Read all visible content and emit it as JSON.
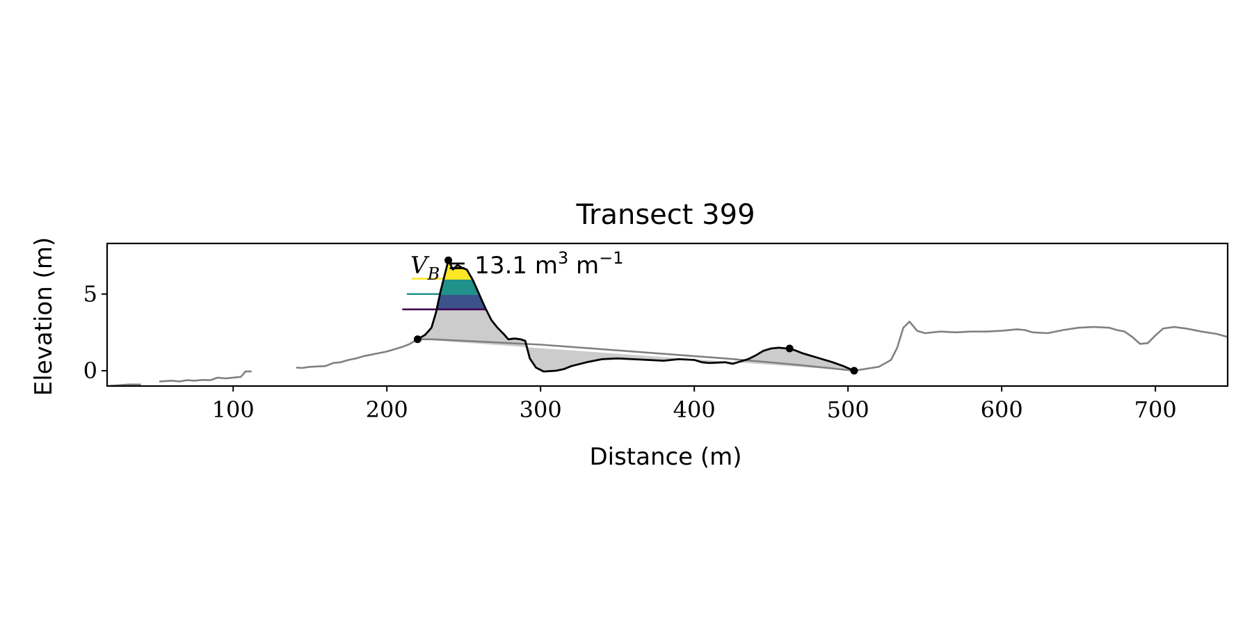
{
  "chart_data": {
    "type": "line",
    "title": "Transect 399",
    "xlabel": "Distance (m)",
    "ylabel": "Elevation (m)",
    "xlim": [
      18,
      747
    ],
    "ylim": [
      -1,
      8.3
    ],
    "xticks": [
      100,
      200,
      300,
      400,
      500,
      600,
      700
    ],
    "yticks": [
      0,
      5
    ],
    "grid": false,
    "legend": "none",
    "annotation": {
      "prefix": "V",
      "subscript": "B",
      "text": " = 13.1 m",
      "sup1": "3",
      "mid": " m",
      "sup2": "−1"
    },
    "colors": {
      "profile": "#808080",
      "dune": "#000000",
      "fill": "#cccccc",
      "band_low": "#440154",
      "band_mid": "#21918c",
      "band_high": "#fde725",
      "band_mid2": "#35b779",
      "band_low2": "#3b528b"
    },
    "series": [
      {
        "role": "profile",
        "segments": [
          [
            [
              18,
              -1.0
            ],
            [
              25,
              -0.95
            ],
            [
              32,
              -0.9
            ],
            [
              40,
              -0.9
            ]
          ],
          [
            [
              52,
              -0.7
            ],
            [
              60,
              -0.65
            ],
            [
              65,
              -0.7
            ],
            [
              70,
              -0.62
            ],
            [
              75,
              -0.65
            ],
            [
              80,
              -0.6
            ],
            [
              85,
              -0.62
            ],
            [
              90,
              -0.45
            ],
            [
              95,
              -0.5
            ],
            [
              100,
              -0.45
            ],
            [
              105,
              -0.4
            ],
            [
              108,
              -0.05
            ],
            [
              112,
              -0.05
            ]
          ],
          [
            [
              141,
              0.2
            ],
            [
              145,
              0.18
            ],
            [
              150,
              0.25
            ],
            [
              155,
              0.28
            ],
            [
              160,
              0.3
            ],
            [
              165,
              0.5
            ],
            [
              170,
              0.55
            ],
            [
              175,
              0.7
            ],
            [
              180,
              0.8
            ],
            [
              185,
              0.95
            ],
            [
              190,
              1.05
            ],
            [
              195,
              1.15
            ],
            [
              200,
              1.25
            ],
            [
              205,
              1.4
            ],
            [
              210,
              1.55
            ],
            [
              215,
              1.75
            ],
            [
              220,
              2.05
            ],
            [
              230,
              2.05
            ],
            [
              240,
              2.0
            ],
            [
              260,
              1.9
            ],
            [
              280,
              1.8
            ],
            [
              300,
              1.7
            ],
            [
              340,
              1.4
            ],
            [
              380,
              1.1
            ],
            [
              420,
              0.8
            ],
            [
              460,
              0.45
            ],
            [
              480,
              0.25
            ],
            [
              504,
              0.0
            ],
            [
              510,
              0.1
            ],
            [
              520,
              0.25
            ],
            [
              528,
              0.7
            ],
            [
              532,
              1.5
            ],
            [
              536,
              2.8
            ],
            [
              540,
              3.2
            ],
            [
              545,
              2.6
            ],
            [
              550,
              2.45
            ],
            [
              560,
              2.55
            ],
            [
              570,
              2.5
            ],
            [
              580,
              2.55
            ],
            [
              590,
              2.55
            ],
            [
              600,
              2.6
            ],
            [
              610,
              2.7
            ],
            [
              615,
              2.65
            ],
            [
              620,
              2.5
            ],
            [
              630,
              2.45
            ],
            [
              640,
              2.65
            ],
            [
              650,
              2.8
            ],
            [
              660,
              2.85
            ],
            [
              670,
              2.8
            ],
            [
              675,
              2.65
            ],
            [
              680,
              2.55
            ],
            [
              685,
              2.2
            ],
            [
              690,
              1.75
            ],
            [
              695,
              1.8
            ],
            [
              700,
              2.3
            ],
            [
              705,
              2.75
            ],
            [
              712,
              2.85
            ],
            [
              720,
              2.75
            ],
            [
              730,
              2.55
            ],
            [
              740,
              2.4
            ],
            [
              747,
              2.2
            ]
          ]
        ]
      },
      {
        "role": "dune",
        "points": [
          [
            220,
            2.05
          ],
          [
            225,
            2.35
          ],
          [
            229,
            2.8
          ],
          [
            232,
            3.8
          ],
          [
            235,
            5.2
          ],
          [
            238,
            6.4
          ],
          [
            240,
            7.2
          ],
          [
            243,
            6.6
          ],
          [
            246,
            6.9
          ],
          [
            249,
            6.7
          ],
          [
            252,
            6.6
          ],
          [
            256,
            5.9
          ],
          [
            260,
            5.0
          ],
          [
            264,
            4.1
          ],
          [
            268,
            3.3
          ],
          [
            272,
            2.8
          ],
          [
            276,
            2.4
          ],
          [
            279,
            2.05
          ],
          [
            283,
            2.1
          ],
          [
            287,
            2.05
          ],
          [
            290,
            1.95
          ],
          [
            293,
            0.8
          ],
          [
            297,
            0.2
          ],
          [
            302,
            -0.05
          ],
          [
            310,
            0.0
          ],
          [
            315,
            0.1
          ],
          [
            320,
            0.3
          ],
          [
            330,
            0.55
          ],
          [
            340,
            0.75
          ],
          [
            350,
            0.8
          ],
          [
            360,
            0.75
          ],
          [
            370,
            0.7
          ],
          [
            380,
            0.65
          ],
          [
            390,
            0.75
          ],
          [
            400,
            0.7
          ],
          [
            405,
            0.55
          ],
          [
            410,
            0.5
          ],
          [
            420,
            0.55
          ],
          [
            425,
            0.45
          ],
          [
            430,
            0.6
          ],
          [
            435,
            0.75
          ],
          [
            440,
            1.0
          ],
          [
            445,
            1.3
          ],
          [
            450,
            1.45
          ],
          [
            455,
            1.5
          ],
          [
            460,
            1.45
          ],
          [
            465,
            1.35
          ],
          [
            470,
            1.15
          ],
          [
            480,
            0.85
          ],
          [
            490,
            0.55
          ],
          [
            497,
            0.3
          ],
          [
            504,
            0.0
          ]
        ]
      }
    ],
    "markers": [
      [
        220,
        2.05
      ],
      [
        240,
        7.2
      ],
      [
        462,
        1.45
      ],
      [
        504,
        0.0
      ]
    ],
    "bands": [
      {
        "y": 4,
        "x_start": 210,
        "color_key": "band_low"
      },
      {
        "y": 5,
        "x_start": 213,
        "color_key": "band_mid"
      },
      {
        "y": 6,
        "x_start": 216,
        "color_key": "band_high"
      }
    ]
  }
}
